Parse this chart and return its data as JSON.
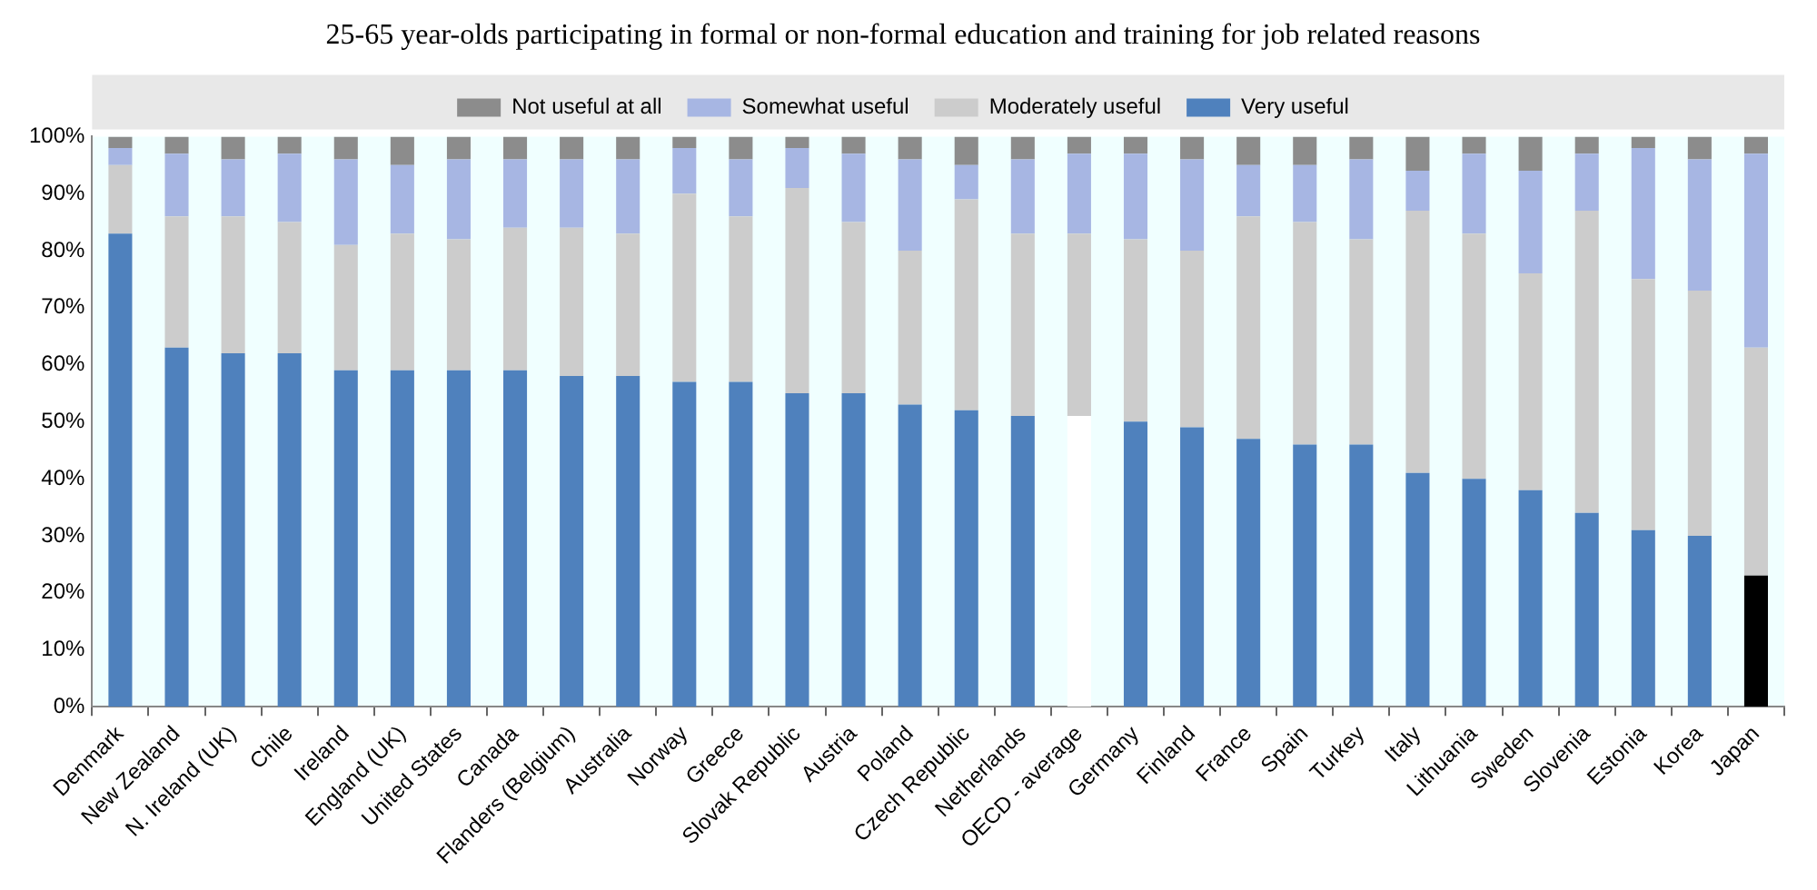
{
  "chart_data": {
    "type": "bar",
    "stacked": true,
    "title": "25-65 year-olds participating in formal or non-formal education and training for job related reasons",
    "categories": [
      "Denmark",
      "New Zealand",
      "N. Ireland (UK)",
      "Chile",
      "Ireland",
      "England (UK)",
      "United States",
      "Canada",
      "Flanders (Belgium)",
      "Australia",
      "Norway",
      "Greece",
      "Slovak Republic",
      "Austria",
      "Poland",
      "Czech Republic",
      "Netherlands",
      "OECD - average",
      "Germany",
      "Finland",
      "France",
      "Spain",
      "Turkey",
      "Italy",
      "Lithuania",
      "Sweden",
      "Slovenia",
      "Estonia",
      "Korea",
      "Japan"
    ],
    "series": [
      {
        "name": "Very useful",
        "color": "#4f81bd",
        "colors": [
          "#4f81bd",
          "#4f81bd",
          "#4f81bd",
          "#4f81bd",
          "#4f81bd",
          "#4f81bd",
          "#4f81bd",
          "#4f81bd",
          "#4f81bd",
          "#4f81bd",
          "#4f81bd",
          "#4f81bd",
          "#4f81bd",
          "#4f81bd",
          "#4f81bd",
          "#4f81bd",
          "#4f81bd",
          "#ffffff",
          "#4f81bd",
          "#4f81bd",
          "#4f81bd",
          "#4f81bd",
          "#4f81bd",
          "#4f81bd",
          "#4f81bd",
          "#4f81bd",
          "#4f81bd",
          "#4f81bd",
          "#4f81bd",
          "#000000"
        ],
        "values": [
          83,
          63,
          62,
          62,
          59,
          59,
          59,
          59,
          58,
          58,
          57,
          57,
          55,
          55,
          53,
          52,
          51,
          51,
          50,
          49,
          47,
          46,
          46,
          41,
          40,
          38,
          34,
          31,
          30,
          23
        ]
      },
      {
        "name": "Moderately useful",
        "color": "#cccccc",
        "values": [
          12,
          23,
          24,
          23,
          22,
          24,
          23,
          25,
          26,
          25,
          33,
          29,
          36,
          30,
          27,
          37,
          32,
          32,
          32,
          31,
          39,
          39,
          36,
          46,
          43,
          38,
          53,
          44,
          43,
          40
        ]
      },
      {
        "name": "Somewhat useful",
        "color": "#a7b6e3",
        "values": [
          3,
          11,
          10,
          12,
          15,
          12,
          14,
          12,
          12,
          13,
          8,
          10,
          7,
          12,
          16,
          6,
          13,
          14,
          15,
          16,
          9,
          10,
          14,
          7,
          14,
          18,
          10,
          23,
          23,
          34
        ]
      },
      {
        "name": "Not useful at all",
        "color": "#8c8c8c",
        "values": [
          2,
          3,
          4,
          3,
          4,
          5,
          4,
          4,
          4,
          4,
          2,
          4,
          2,
          3,
          4,
          5,
          4,
          3,
          3,
          4,
          5,
          5,
          4,
          6,
          3,
          6,
          3,
          2,
          4,
          3
        ]
      }
    ],
    "ylim": [
      0,
      100
    ],
    "yticks": [
      {
        "value": 0,
        "label": "0%"
      },
      {
        "value": 10,
        "label": "10%"
      },
      {
        "value": 20,
        "label": "20%"
      },
      {
        "value": 30,
        "label": "30%"
      },
      {
        "value": 40,
        "label": "40%"
      },
      {
        "value": 50,
        "label": "50%"
      },
      {
        "value": 60,
        "label": "60%"
      },
      {
        "value": 70,
        "label": "70%"
      },
      {
        "value": 80,
        "label": "80%"
      },
      {
        "value": 90,
        "label": "90%"
      },
      {
        "value": 100,
        "label": "100%"
      }
    ],
    "grid": false,
    "legend": "top"
  }
}
